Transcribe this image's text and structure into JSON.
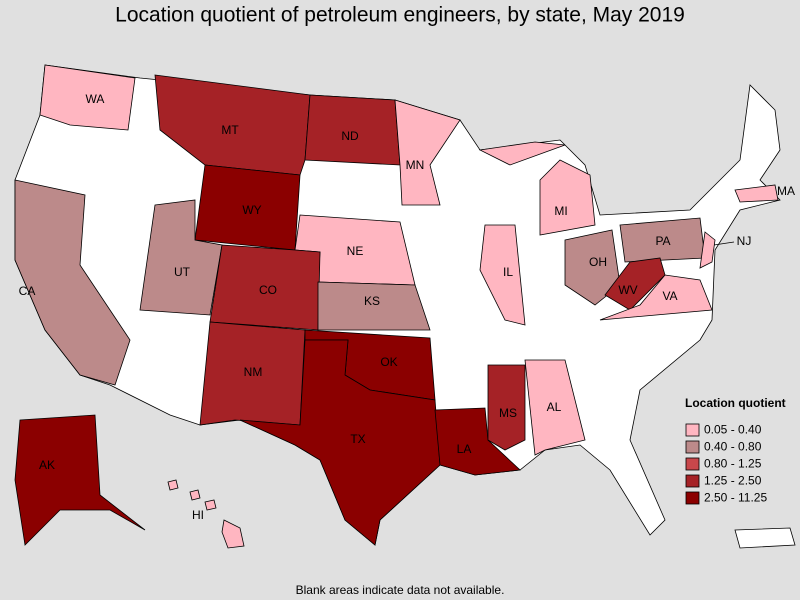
{
  "title": "Location quotient of petroleum engineers, by state, May 2019",
  "footnote": "Blank areas indicate data not available.",
  "legend": {
    "title": "Location quotient",
    "items": [
      {
        "label": "0.05 - 0.40",
        "color": "#ffb6c1"
      },
      {
        "label": "0.40 - 0.80",
        "color": "#bc8a8a"
      },
      {
        "label": "0.80 - 1.25",
        "color": "#c8474b"
      },
      {
        "label": "1.25 - 2.50",
        "color": "#a52226"
      },
      {
        "label": "2.50 - 11.25",
        "color": "#8b0000"
      }
    ]
  },
  "states": [
    {
      "label": "WA",
      "color": "#ffb6c1"
    },
    {
      "label": "MT",
      "color": "#a52226"
    },
    {
      "label": "ND",
      "color": "#a52226"
    },
    {
      "label": "MN",
      "color": "#ffb6c1"
    },
    {
      "label": "WY",
      "color": "#8b0000"
    },
    {
      "label": "NE",
      "color": "#ffb6c1"
    },
    {
      "label": "CA",
      "color": "#bc8a8a"
    },
    {
      "label": "UT",
      "color": "#bc8a8a"
    },
    {
      "label": "CO",
      "color": "#a52226"
    },
    {
      "label": "KS",
      "color": "#bc8a8a"
    },
    {
      "label": "NM",
      "color": "#a52226"
    },
    {
      "label": "OK",
      "color": "#8b0000"
    },
    {
      "label": "TX",
      "color": "#8b0000"
    },
    {
      "label": "LA",
      "color": "#8b0000"
    },
    {
      "label": "MS",
      "color": "#a52226"
    },
    {
      "label": "AL",
      "color": "#ffb6c1"
    },
    {
      "label": "IL",
      "color": "#ffb6c1"
    },
    {
      "label": "MI",
      "color": "#ffb6c1"
    },
    {
      "label": "OH",
      "color": "#bc8a8a"
    },
    {
      "label": "PA",
      "color": "#bc8a8a"
    },
    {
      "label": "WV",
      "color": "#a52226"
    },
    {
      "label": "VA",
      "color": "#ffb6c1"
    },
    {
      "label": "NJ",
      "color": "#ffb6c1"
    },
    {
      "label": "MA",
      "color": "#ffb6c1"
    },
    {
      "label": "AK",
      "color": "#8b0000"
    },
    {
      "label": "HI",
      "color": "#ffb6c1"
    }
  ]
}
